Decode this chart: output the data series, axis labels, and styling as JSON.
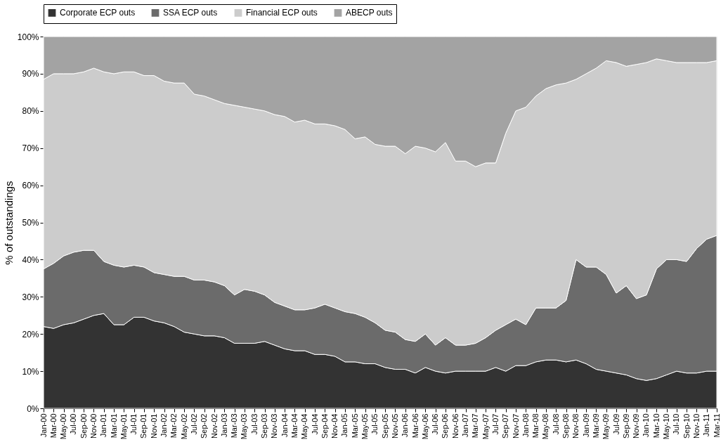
{
  "chart_data": {
    "type": "area",
    "stacked": true,
    "ylabel": "% of outstandings",
    "legend": "top",
    "categories": [
      "Jan-00",
      "Mar-00",
      "May-00",
      "Jul-00",
      "Sep-00",
      "Nov-00",
      "Jan-01",
      "Mar-01",
      "May-01",
      "Jul-01",
      "Sep-01",
      "Nov-01",
      "Jan-02",
      "Mar-02",
      "May-02",
      "Jul-02",
      "Sep-02",
      "Nov-02",
      "Jan-03",
      "Mar-03",
      "May-03",
      "Jul-03",
      "Sep-03",
      "Nov-03",
      "Jan-04",
      "Mar-04",
      "May-04",
      "Jul-04",
      "Sep-04",
      "Nov-04",
      "Jan-05",
      "Mar-05",
      "May-05",
      "Jul-05",
      "Sep-05",
      "Nov-05",
      "Jan-06",
      "Mar-06",
      "May-06",
      "Jul-06",
      "Sep-06",
      "Nov-06",
      "Jan-07",
      "Mar-07",
      "May-07",
      "Jul-07",
      "Sep-07",
      "Nov-07",
      "Jan-08",
      "Mar-08",
      "May-08",
      "Jul-08",
      "Sep-08",
      "Nov-08",
      "Jan-09",
      "Mar-09",
      "May-09",
      "Jul-09",
      "Sep-09",
      "Nov-09",
      "Jan-10",
      "Mar-10",
      "May-10",
      "Jul-10",
      "Sep-10",
      "Nov-10",
      "Jan-11",
      "Mar-11"
    ],
    "series": [
      {
        "name": "Corporate ECP outs",
        "color": "#333333",
        "values": [
          22,
          21.5,
          22.5,
          23,
          24,
          25,
          25.5,
          22.5,
          22.5,
          24.5,
          24.5,
          23.5,
          23,
          22,
          20.5,
          20,
          19.5,
          19.5,
          19,
          17.5,
          17.5,
          17.5,
          18,
          17,
          16,
          15.5,
          15.5,
          14.5,
          14.5,
          14,
          12.5,
          12.5,
          12,
          12,
          11,
          10.5,
          10.5,
          9.5,
          11,
          10,
          9.5,
          10,
          10,
          10,
          10,
          11,
          10,
          11.5,
          11.5,
          12.5,
          13,
          13,
          12.5,
          13,
          12,
          10.5,
          10,
          9.5,
          9,
          8,
          7.5,
          8,
          9,
          10,
          9.5,
          9.5,
          10,
          10
        ]
      },
      {
        "name": "SSA ECP outs",
        "color": "#6b6b6b",
        "values": [
          15.5,
          17.5,
          18.5,
          19,
          18.5,
          17.5,
          14,
          16,
          15.5,
          14,
          13.5,
          13,
          13,
          13.5,
          15,
          14.5,
          15,
          14.5,
          14,
          13,
          14.5,
          14,
          12.5,
          11.5,
          11.5,
          11,
          11,
          12.5,
          13.5,
          13,
          13.5,
          13,
          12.5,
          11,
          10,
          10,
          8,
          8.5,
          9,
          7,
          9.5,
          7,
          7,
          7.5,
          9,
          10,
          12.5,
          12.5,
          11,
          14.5,
          14,
          14,
          16.5,
          27,
          26,
          27.5,
          26,
          21.5,
          24,
          21.5,
          23,
          29.5,
          31,
          30,
          30,
          33.5,
          35.5,
          36.5
        ]
      },
      {
        "name": "Financial ECP outs",
        "color": "#cccccc",
        "values": [
          51,
          51,
          49,
          48,
          48,
          49,
          51,
          51.5,
          52.5,
          52,
          51.5,
          53,
          52,
          52,
          52,
          50,
          49.5,
          49,
          49,
          51,
          49,
          49,
          49.5,
          50.5,
          51,
          50.5,
          51,
          49.5,
          48.5,
          49,
          49,
          47,
          48.5,
          48,
          49.5,
          50,
          50,
          52.5,
          50,
          52,
          52.5,
          49.5,
          49.5,
          47.5,
          47,
          45,
          51.5,
          56,
          58.5,
          57,
          59,
          60,
          58.5,
          48.5,
          52,
          53.5,
          57.5,
          62,
          59,
          63,
          62.5,
          56.5,
          53.5,
          53,
          53.5,
          50,
          47.5,
          47
        ]
      },
      {
        "name": "ABECP outs",
        "color": "#a3a3a3",
        "values": [
          11.5,
          10,
          10,
          10,
          9.5,
          8.5,
          9.5,
          10,
          9.5,
          9.5,
          10.5,
          10.5,
          12,
          12.5,
          12.5,
          15.5,
          16,
          17,
          18,
          18.5,
          19,
          19.5,
          20,
          21,
          21.5,
          23,
          22.5,
          23.5,
          23.5,
          24,
          25,
          27.5,
          27,
          29,
          29.5,
          29.5,
          31.5,
          29.5,
          30,
          31,
          28.5,
          33.5,
          33.5,
          35,
          34,
          34,
          26,
          20,
          19,
          16,
          14,
          13,
          12.5,
          11.5,
          10,
          8.5,
          6.5,
          7,
          8,
          7.5,
          7,
          6,
          6.5,
          7,
          7,
          7,
          7,
          6.5
        ]
      }
    ],
    "ylim": [
      0,
      100
    ],
    "yticks": [
      {
        "value": 0,
        "label": "0%"
      },
      {
        "value": 10,
        "label": "10%"
      },
      {
        "value": 20,
        "label": "20%"
      },
      {
        "value": 30,
        "label": "30%"
      },
      {
        "value": 40,
        "label": "40%"
      },
      {
        "value": 50,
        "label": "50%"
      },
      {
        "value": 60,
        "label": "60%"
      },
      {
        "value": 70,
        "label": "70%"
      },
      {
        "value": 80,
        "label": "80%"
      },
      {
        "value": 90,
        "label": "90%"
      },
      {
        "value": 100,
        "label": "100%"
      }
    ]
  }
}
